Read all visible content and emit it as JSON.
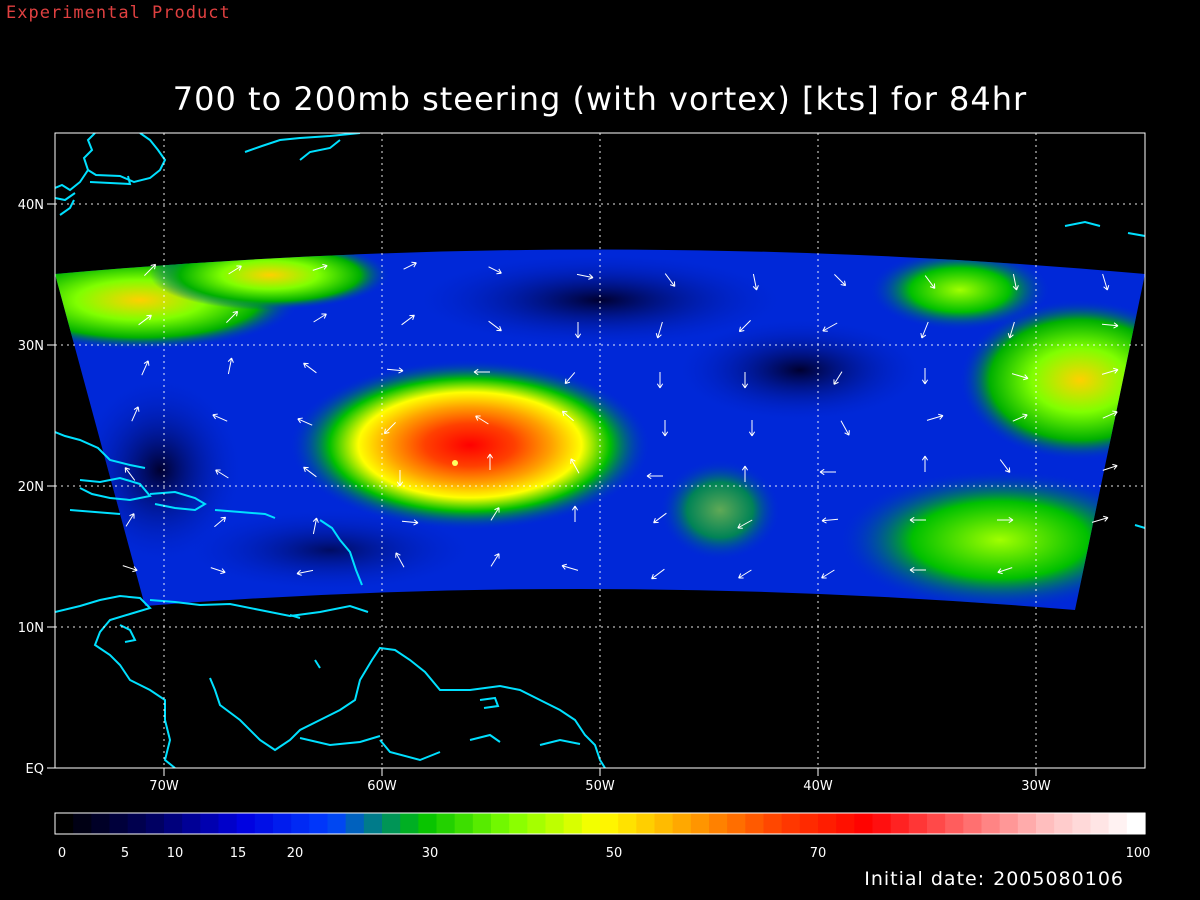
{
  "header": {
    "experimental_label": "Experimental Product",
    "title": "700 to 200mb steering (with vortex) [kts] for 84hr"
  },
  "footer": {
    "initial_date_label": "Initial date:",
    "initial_date_value": "2005080106"
  },
  "map": {
    "lat_labels": [
      "EQ",
      "10N",
      "20N",
      "30N",
      "40N"
    ],
    "lon_labels": [
      "70W",
      "60W",
      "50W",
      "40W",
      "30W"
    ],
    "lon_range_deg_w": [
      75,
      25
    ],
    "lat_range_deg": [
      0,
      45
    ],
    "coastline_color": "#00e0ff",
    "storm_center_lon_w": 57,
    "storm_center_lat": 22,
    "grid": true
  },
  "colorbar": {
    "units": "kts",
    "tick_labels": [
      "0",
      "5",
      "10",
      "15",
      "20",
      "30",
      "50",
      "70",
      "100"
    ],
    "tick_values": [
      0,
      5,
      10,
      15,
      20,
      30,
      50,
      70,
      100
    ],
    "colors": [
      "#000000",
      "#000060",
      "#0000e0",
      "#0040ff",
      "#00c000",
      "#80ff00",
      "#ffff00",
      "#ffa000",
      "#ff4000",
      "#ff0000",
      "#ff6060",
      "#ffc0c0",
      "#ffffff"
    ]
  }
}
